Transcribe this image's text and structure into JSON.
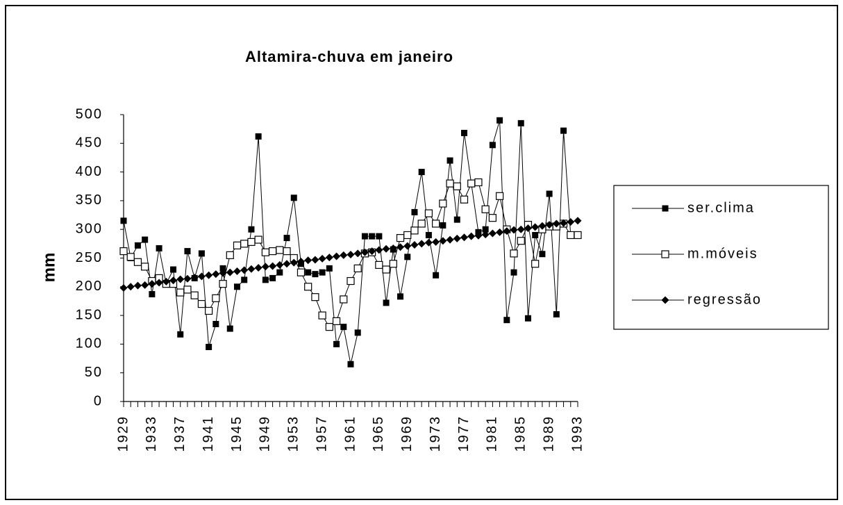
{
  "chart_data": {
    "type": "line",
    "title": "Altamira-chuva em janeiro",
    "y_label": "mm",
    "categories": [
      "1929",
      null,
      null,
      null,
      "1933",
      null,
      null,
      null,
      "1937",
      null,
      null,
      null,
      "1941",
      null,
      null,
      null,
      "1945",
      null,
      null,
      null,
      "1949",
      null,
      null,
      null,
      "1953",
      null,
      null,
      null,
      "1957",
      null,
      null,
      null,
      "1961",
      null,
      null,
      null,
      "1965",
      null,
      null,
      null,
      "1969",
      null,
      null,
      null,
      "1973",
      null,
      null,
      null,
      "1977",
      null,
      null,
      null,
      "1981",
      null,
      null,
      null,
      "1985",
      null,
      null,
      null,
      "1989",
      null,
      null,
      null,
      "1993"
    ],
    "series": [
      {
        "name": "ser.clima",
        "color": "#000000",
        "marker": "filled-square",
        "values": [
          315,
          250,
          272,
          282,
          187,
          267,
          205,
          230,
          117,
          262,
          215,
          258,
          95,
          135,
          232,
          127,
          200,
          212,
          300,
          462,
          212,
          215,
          225,
          285,
          355,
          240,
          225,
          222,
          225,
          232,
          100,
          130,
          65,
          120,
          288,
          288,
          288,
          172,
          265,
          183,
          252,
          330,
          400,
          290,
          220,
          307,
          420,
          317,
          468,
          380,
          295,
          300,
          447,
          490,
          142,
          225,
          485,
          145,
          290,
          257,
          362,
          152,
          472,
          290,
          290
        ]
      },
      {
        "name": "m.móveis",
        "color": "#000000",
        "marker": "open-square",
        "values": [
          262,
          252,
          243,
          235,
          210,
          215,
          205,
          205,
          190,
          195,
          185,
          170,
          158,
          180,
          205,
          255,
          272,
          275,
          278,
          282,
          260,
          262,
          264,
          262,
          250,
          225,
          200,
          182,
          150,
          130,
          140,
          178,
          210,
          232,
          258,
          260,
          238,
          230,
          240,
          285,
          290,
          298,
          310,
          328,
          310,
          345,
          380,
          375,
          352,
          380,
          382,
          335,
          320,
          358,
          300,
          258,
          280,
          308,
          240,
          300,
          305,
          305,
          310,
          290,
          290
        ]
      },
      {
        "name": "regressão",
        "color": "#000000",
        "marker": "diamond",
        "values": [
          198,
          200,
          202,
          203,
          205,
          207,
          209,
          211,
          213,
          214,
          216,
          218,
          220,
          222,
          224,
          225,
          227,
          229,
          231,
          233,
          235,
          236,
          238,
          240,
          242,
          244,
          246,
          247,
          249,
          251,
          253,
          255,
          256,
          258,
          260,
          262,
          264,
          266,
          267,
          269,
          271,
          273,
          275,
          277,
          278,
          280,
          282,
          284,
          286,
          288,
          289,
          291,
          293,
          295,
          297,
          299,
          300,
          302,
          304,
          306,
          308,
          310,
          311,
          313,
          315
        ]
      }
    ],
    "ylim": [
      0,
      500
    ],
    "yticks": [
      0,
      50,
      100,
      150,
      200,
      250,
      300,
      350,
      400,
      450,
      500
    ],
    "grid": false,
    "legend": "right"
  }
}
